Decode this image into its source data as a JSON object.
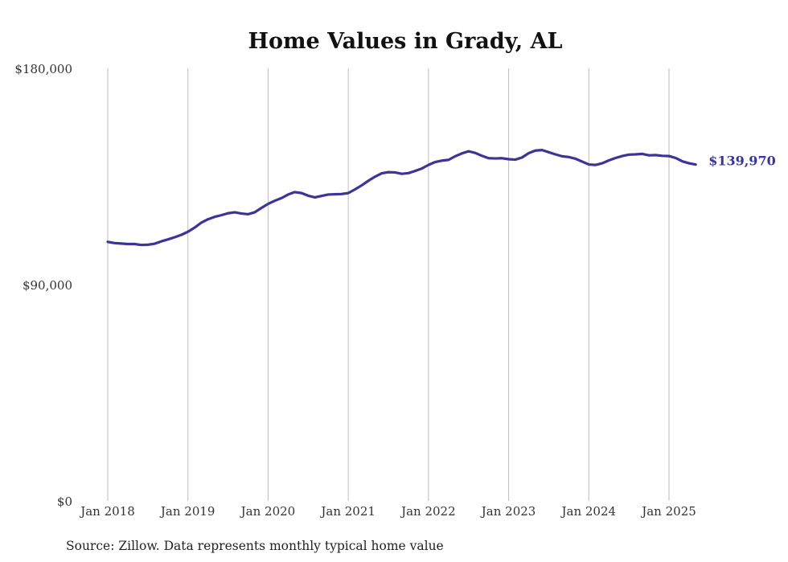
{
  "chart_data": {
    "type": "line",
    "title": "Home Values in Grady, AL",
    "xlabel": "",
    "ylabel": "",
    "ylim": [
      0,
      180000
    ],
    "y_ticks": [
      {
        "value": 0,
        "label": "$0"
      },
      {
        "value": 90000,
        "label": "$90,000"
      },
      {
        "value": 180000,
        "label": "$180,000"
      }
    ],
    "x_ticks": [
      {
        "value": 2018,
        "label": "Jan 2018"
      },
      {
        "value": 2019,
        "label": "Jan 2019"
      },
      {
        "value": 2020,
        "label": "Jan 2020"
      },
      {
        "value": 2021,
        "label": "Jan 2021"
      },
      {
        "value": 2022,
        "label": "Jan 2022"
      },
      {
        "value": 2023,
        "label": "Jan 2023"
      },
      {
        "value": 2024,
        "label": "Jan 2024"
      },
      {
        "value": 2025,
        "label": "Jan 2025"
      }
    ],
    "xlim": [
      2018,
      2025.5
    ],
    "grid": "vertical",
    "series": [
      {
        "name": "Typical home value",
        "color": "#3a3597",
        "points": [
          [
            2018.0,
            107800
          ],
          [
            2018.083,
            107300
          ],
          [
            2018.167,
            107100
          ],
          [
            2018.25,
            106900
          ],
          [
            2018.333,
            106900
          ],
          [
            2018.417,
            106500
          ],
          [
            2018.5,
            106600
          ],
          [
            2018.583,
            107000
          ],
          [
            2018.667,
            108000
          ],
          [
            2018.75,
            108800
          ],
          [
            2018.833,
            109700
          ],
          [
            2018.917,
            110700
          ],
          [
            2019.0,
            112000
          ],
          [
            2019.083,
            113700
          ],
          [
            2019.167,
            115800
          ],
          [
            2019.25,
            117200
          ],
          [
            2019.333,
            118200
          ],
          [
            2019.417,
            118900
          ],
          [
            2019.5,
            119700
          ],
          [
            2019.583,
            120100
          ],
          [
            2019.667,
            119600
          ],
          [
            2019.75,
            119300
          ],
          [
            2019.833,
            120100
          ],
          [
            2019.917,
            121900
          ],
          [
            2020.0,
            123600
          ],
          [
            2020.083,
            124900
          ],
          [
            2020.167,
            126000
          ],
          [
            2020.25,
            127500
          ],
          [
            2020.333,
            128500
          ],
          [
            2020.417,
            128100
          ],
          [
            2020.5,
            127000
          ],
          [
            2020.583,
            126300
          ],
          [
            2020.667,
            126900
          ],
          [
            2020.75,
            127500
          ],
          [
            2020.833,
            127600
          ],
          [
            2020.917,
            127700
          ],
          [
            2021.0,
            128100
          ],
          [
            2021.083,
            129600
          ],
          [
            2021.167,
            131300
          ],
          [
            2021.25,
            133200
          ],
          [
            2021.333,
            134900
          ],
          [
            2021.417,
            136300
          ],
          [
            2021.5,
            136800
          ],
          [
            2021.583,
            136700
          ],
          [
            2021.667,
            136100
          ],
          [
            2021.75,
            136400
          ],
          [
            2021.833,
            137300
          ],
          [
            2021.917,
            138300
          ],
          [
            2022.0,
            139800
          ],
          [
            2022.083,
            141000
          ],
          [
            2022.167,
            141600
          ],
          [
            2022.25,
            141900
          ],
          [
            2022.333,
            143400
          ],
          [
            2022.417,
            144600
          ],
          [
            2022.5,
            145500
          ],
          [
            2022.583,
            144800
          ],
          [
            2022.667,
            143600
          ],
          [
            2022.75,
            142600
          ],
          [
            2022.833,
            142500
          ],
          [
            2022.917,
            142600
          ],
          [
            2023.0,
            142200
          ],
          [
            2023.083,
            142000
          ],
          [
            2023.167,
            142900
          ],
          [
            2023.25,
            144700
          ],
          [
            2023.333,
            145800
          ],
          [
            2023.417,
            146000
          ],
          [
            2023.5,
            145100
          ],
          [
            2023.583,
            144200
          ],
          [
            2023.667,
            143400
          ],
          [
            2023.75,
            143100
          ],
          [
            2023.833,
            142400
          ],
          [
            2023.917,
            141200
          ],
          [
            2024.0,
            140000
          ],
          [
            2024.083,
            139800
          ],
          [
            2024.167,
            140500
          ],
          [
            2024.25,
            141700
          ],
          [
            2024.333,
            142700
          ],
          [
            2024.417,
            143500
          ],
          [
            2024.5,
            144100
          ],
          [
            2024.583,
            144200
          ],
          [
            2024.667,
            144400
          ],
          [
            2024.75,
            143800
          ],
          [
            2024.833,
            143900
          ],
          [
            2024.917,
            143600
          ],
          [
            2025.0,
            143500
          ],
          [
            2025.083,
            142700
          ],
          [
            2025.167,
            141300
          ],
          [
            2025.25,
            140500
          ],
          [
            2025.333,
            139970
          ]
        ],
        "end_label": "$139,970"
      }
    ],
    "source": "Source: Zillow. Data represents monthly typical home value"
  }
}
